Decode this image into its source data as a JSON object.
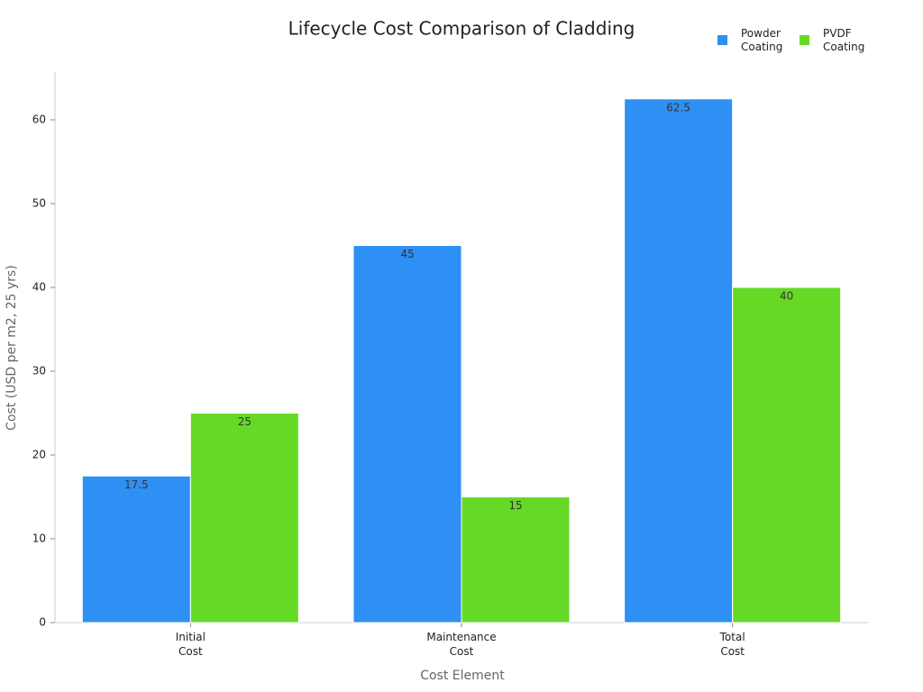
{
  "chart_data": {
    "type": "bar",
    "title": "Lifecycle Cost Comparison of Cladding",
    "x_label": "Cost Element",
    "y_label": "Cost (USD per m2, 25 yrs)",
    "categories": [
      "Initial Cost",
      "Maintenance Cost",
      "Total Cost"
    ],
    "series": [
      {
        "name": "Powder Coating",
        "color": "#2e8ff5",
        "values": [
          17.5,
          45,
          62.5
        ]
      },
      {
        "name": "PVDF Coating",
        "color": "#66d926",
        "values": [
          25,
          15,
          40
        ]
      }
    ],
    "ylim": [
      0,
      65.7
    ],
    "yticks": [
      0,
      10,
      20,
      30,
      40,
      50,
      60
    ],
    "grid": false,
    "legend": "top-right"
  }
}
